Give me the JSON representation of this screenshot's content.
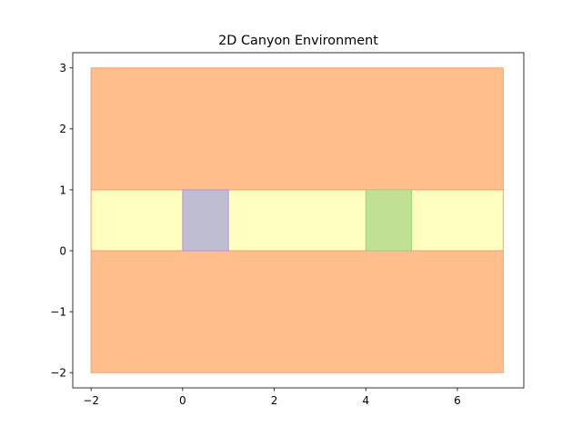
{
  "chart_data": {
    "type": "area",
    "title": "2D Canyon Environment",
    "xlabel": "",
    "ylabel": "",
    "xlim": [
      -2.4,
      7.45
    ],
    "ylim": [
      -2.25,
      3.25
    ],
    "grid": false,
    "xticks": [
      -2,
      0,
      2,
      4,
      6
    ],
    "yticks": [
      -2,
      -1,
      0,
      1,
      2,
      3
    ],
    "regions": [
      {
        "name": "upper-canyon-wall",
        "x": [
          -2,
          7
        ],
        "y": [
          1,
          3
        ],
        "fill": "#ffbe8c",
        "stroke": "#f5a070"
      },
      {
        "name": "canyon-corridor",
        "x": [
          -2,
          7
        ],
        "y": [
          0,
          1
        ],
        "fill": "#ffffc0",
        "stroke": "#f5a070"
      },
      {
        "name": "lower-canyon-wall",
        "x": [
          -2,
          7
        ],
        "y": [
          -2,
          0
        ],
        "fill": "#ffbe8c",
        "stroke": "#f5a070"
      },
      {
        "name": "start-region",
        "x": [
          0,
          1
        ],
        "y": [
          0,
          1
        ],
        "fill": "#bfbdd2",
        "stroke": "#b991e8"
      },
      {
        "name": "goal-region",
        "x": [
          4,
          5
        ],
        "y": [
          0,
          1
        ],
        "fill": "#c2e094",
        "stroke": "#a0cf78"
      }
    ]
  }
}
